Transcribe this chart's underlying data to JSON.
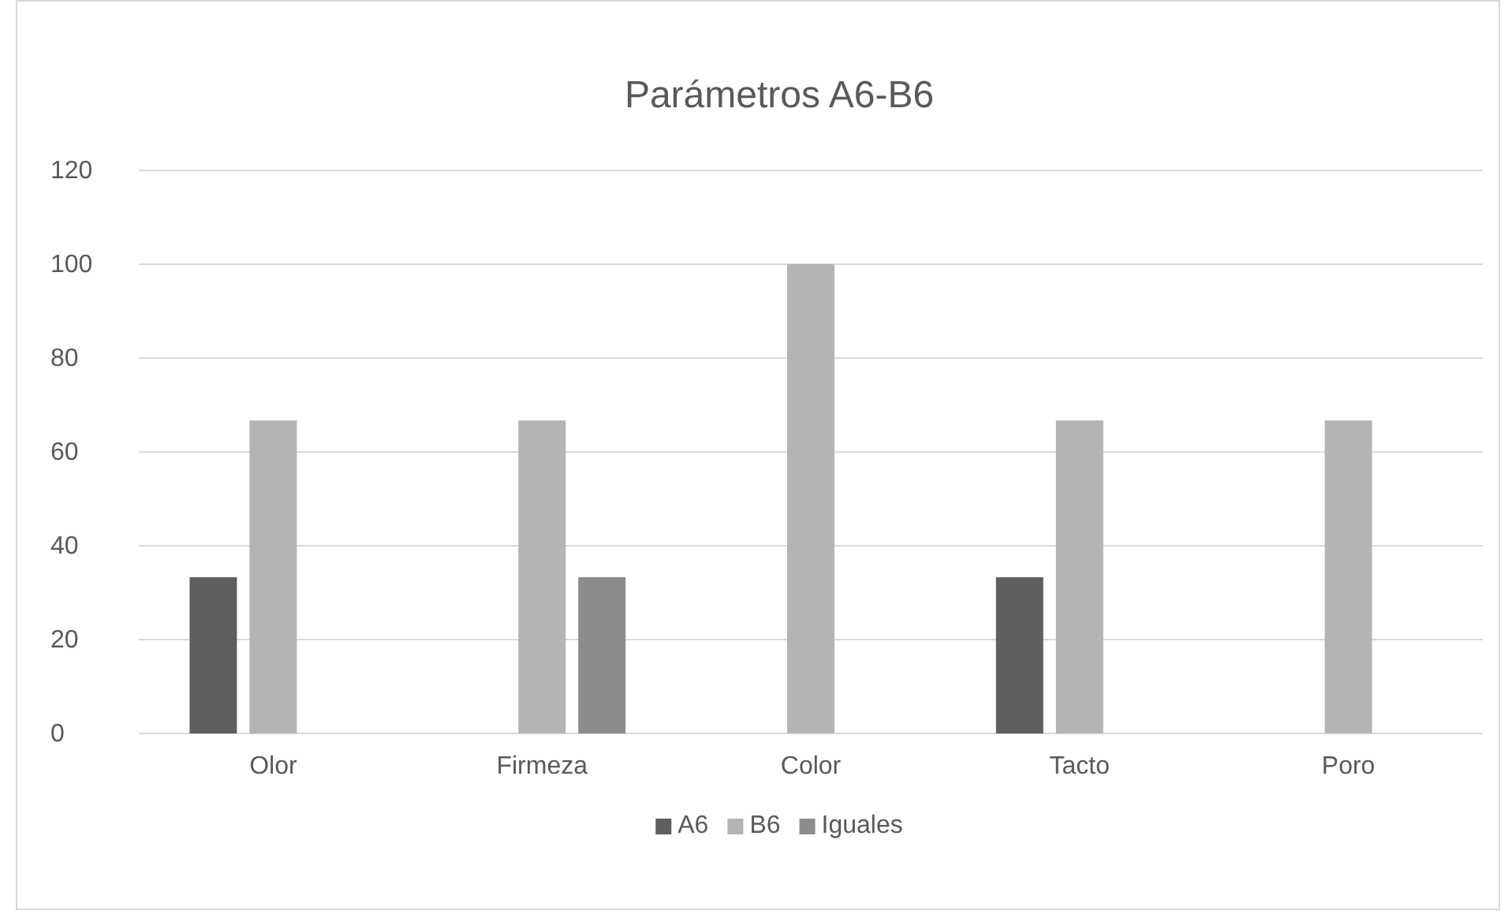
{
  "chart_data": {
    "type": "bar",
    "title": "Parámetros A6-B6",
    "categories": [
      "Olor",
      "Firmeza",
      "Color",
      "Tacto",
      "Poro"
    ],
    "series": [
      {
        "name": "A6",
        "color": "#5f5f5f",
        "values": [
          33.3,
          0,
          0,
          33.3,
          0
        ]
      },
      {
        "name": "B6",
        "color": "#b4b4b4",
        "values": [
          66.7,
          66.7,
          100,
          66.7,
          66.7
        ]
      },
      {
        "name": "Iguales",
        "color": "#8c8c8c",
        "values": [
          0,
          33.3,
          0,
          0,
          0
        ]
      }
    ],
    "ylim": [
      0,
      120
    ],
    "yticks": [
      0,
      20,
      40,
      60,
      80,
      100,
      120
    ],
    "grid": "y",
    "legend": "bottom"
  }
}
